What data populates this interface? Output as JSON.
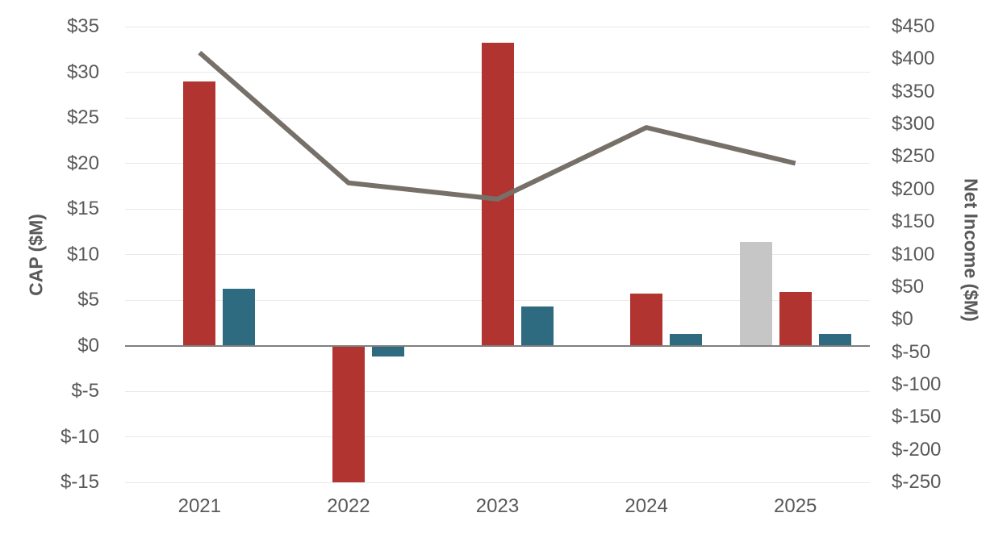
{
  "chart_data": {
    "type": "combo-bar-line",
    "categories": [
      "2021",
      "2022",
      "2023",
      "2024",
      "2025"
    ],
    "bar_series": [
      {
        "name": "gray-bar-series",
        "color": "#c6c6c6",
        "axis": "left",
        "values": [
          null,
          null,
          null,
          null,
          11.4
        ]
      },
      {
        "name": "red-bar-series",
        "color": "#b23431",
        "axis": "left",
        "values": [
          29,
          -15,
          33.2,
          5.7,
          5.9
        ]
      },
      {
        "name": "teal-bar-series",
        "color": "#2e6b80",
        "axis": "left",
        "values": [
          6.2,
          -1.2,
          4.3,
          1.3,
          1.3
        ]
      }
    ],
    "line_series": {
      "name": "net-income-line",
      "color": "#767069",
      "axis": "right",
      "values": [
        410,
        210,
        185,
        295,
        240
      ]
    },
    "left_axis": {
      "title": "CAP ($M)",
      "min": -15,
      "max": 35,
      "step": 5,
      "ticks": [
        "$35",
        "$30",
        "$25",
        "$20",
        "$15",
        "$10",
        "$5",
        "$0",
        "$-5",
        "$-10",
        "$-15"
      ]
    },
    "right_axis": {
      "title": "Net Income ($M)",
      "min": -250,
      "max": 450,
      "step": 50,
      "ticks": [
        "$450",
        "$400",
        "$350",
        "$300",
        "$250",
        "$200",
        "$150",
        "$100",
        "$50",
        "$0",
        "$-50",
        "$-100",
        "$-150",
        "$-200",
        "$-250"
      ]
    },
    "layout_hints": {
      "grid": "horizontal-only",
      "legend": "none"
    },
    "grid_color": "#e9e9e9",
    "zero_line_color": "#7f7f7f",
    "text_color": "#595959",
    "background": "#ffffff"
  }
}
